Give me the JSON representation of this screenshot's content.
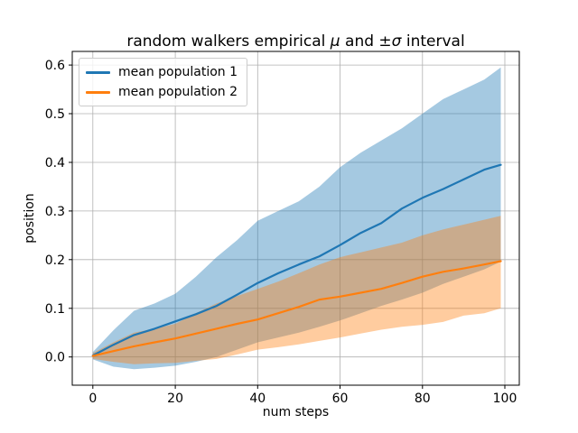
{
  "chart_data": {
    "type": "line",
    "title": "random walkers empirical μ and ±σ interval",
    "title_parts": {
      "pre": "random walkers empirical ",
      "mu": "μ",
      "mid": " and ±",
      "sigma": "σ",
      "post": " interval"
    },
    "xlabel": "num steps",
    "ylabel": "position",
    "xlim": [
      -5,
      103.5
    ],
    "ylim": [
      -0.058,
      0.628
    ],
    "grid": true,
    "grid_color": "#b0b0b0",
    "legend_position": "upper left",
    "xticks": {
      "values": [
        0,
        20,
        40,
        60,
        80,
        100
      ],
      "labels": [
        "0",
        "20",
        "40",
        "60",
        "80",
        "100"
      ]
    },
    "yticks": {
      "values": [
        0.0,
        0.1,
        0.2,
        0.3,
        0.4,
        0.5,
        0.6
      ],
      "labels": [
        "0.0",
        "0.1",
        "0.2",
        "0.3",
        "0.4",
        "0.5",
        "0.6"
      ]
    },
    "x": [
      0,
      5,
      10,
      15,
      20,
      25,
      30,
      35,
      40,
      45,
      50,
      55,
      60,
      65,
      70,
      75,
      80,
      85,
      90,
      95,
      99
    ],
    "series": [
      {
        "name": "mean population 1",
        "color": "#1f77b4",
        "band_alpha": 0.4,
        "values": [
          0.003,
          0.025,
          0.045,
          0.058,
          0.073,
          0.088,
          0.105,
          0.128,
          0.152,
          0.172,
          0.19,
          0.207,
          0.23,
          0.255,
          0.275,
          0.305,
          0.327,
          0.345,
          0.365,
          0.385,
          0.395
        ],
        "band_upper": [
          0.01,
          0.055,
          0.095,
          0.11,
          0.13,
          0.165,
          0.205,
          0.24,
          0.28,
          0.3,
          0.32,
          0.35,
          0.39,
          0.42,
          0.445,
          0.47,
          0.5,
          0.53,
          0.55,
          0.57,
          0.595
        ],
        "band_lower": [
          -0.005,
          -0.02,
          -0.025,
          -0.022,
          -0.018,
          -0.01,
          0.0,
          0.015,
          0.03,
          0.04,
          0.05,
          0.062,
          0.075,
          0.09,
          0.105,
          0.118,
          0.132,
          0.15,
          0.165,
          0.18,
          0.196
        ]
      },
      {
        "name": "mean population 2",
        "color": "#ff7f0e",
        "band_alpha": 0.4,
        "values": [
          0.002,
          0.012,
          0.022,
          0.03,
          0.038,
          0.048,
          0.058,
          0.068,
          0.077,
          0.09,
          0.103,
          0.118,
          0.124,
          0.132,
          0.14,
          0.152,
          0.165,
          0.175,
          0.182,
          0.19,
          0.197
        ],
        "band_upper": [
          0.008,
          0.03,
          0.05,
          0.058,
          0.068,
          0.09,
          0.11,
          0.125,
          0.14,
          0.155,
          0.172,
          0.19,
          0.205,
          0.215,
          0.225,
          0.235,
          0.25,
          0.262,
          0.272,
          0.282,
          0.29
        ],
        "band_lower": [
          -0.004,
          -0.01,
          -0.015,
          -0.013,
          -0.012,
          -0.008,
          -0.004,
          0.005,
          0.015,
          0.02,
          0.026,
          0.033,
          0.04,
          0.048,
          0.056,
          0.062,
          0.066,
          0.072,
          0.085,
          0.09,
          0.1
        ]
      }
    ]
  }
}
